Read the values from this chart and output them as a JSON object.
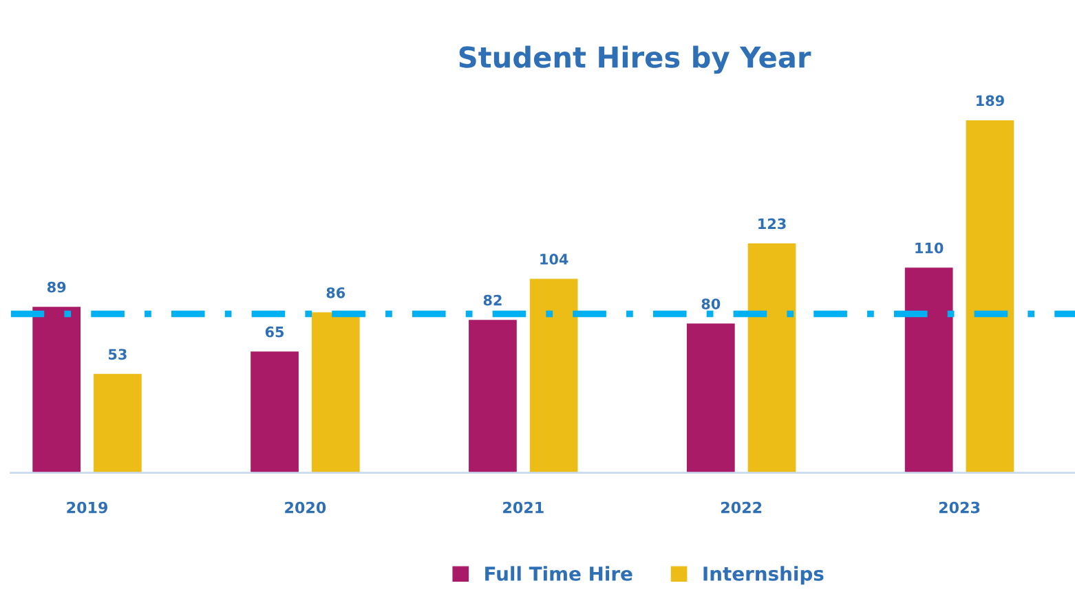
{
  "chart_data": {
    "type": "bar",
    "title": "Student Hires by Year",
    "categories": [
      "2019",
      "2020",
      "2021",
      "2022",
      "2023"
    ],
    "series": [
      {
        "name": "Full Time Hire",
        "color": "#a91b66",
        "values": [
          89,
          65,
          82,
          80,
          110
        ]
      },
      {
        "name": "Internships",
        "color": "#ebbd16",
        "values": [
          53,
          86,
          104,
          123,
          189
        ]
      }
    ],
    "data_labels": true,
    "ref_lines": [
      {
        "axis": "y",
        "value": 85.2,
        "label": null,
        "color": "#00b0f0",
        "line_style": "dashdot"
      }
    ],
    "legend": "bottom",
    "grid": false
  }
}
